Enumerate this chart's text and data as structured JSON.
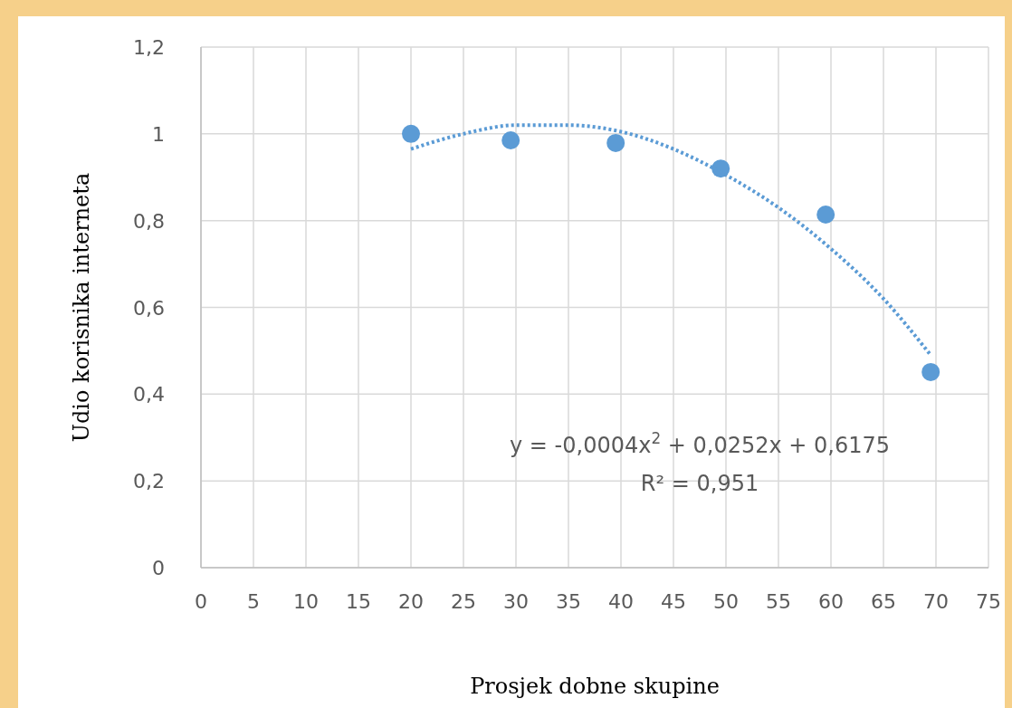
{
  "chart_data": {
    "type": "scatter",
    "xlabel": "Prosjek dobne skupine",
    "ylabel": "Udio korisnika interneta",
    "xlim": [
      0,
      75
    ],
    "xticks": [
      0,
      5,
      10,
      15,
      20,
      25,
      30,
      35,
      40,
      45,
      50,
      55,
      60,
      65,
      70,
      75
    ],
    "ylim": [
      0,
      1.2
    ],
    "yticks": [
      0,
      {
        "value": 0.2,
        "label": "0,2"
      },
      {
        "value": 0.4,
        "label": "0,4"
      },
      {
        "value": 0.6,
        "label": "0,6"
      },
      {
        "value": 0.8,
        "label": "0,8"
      },
      1,
      {
        "value": 1.2,
        "label": "1,2"
      }
    ],
    "grid": true,
    "marker": "circle",
    "series": [
      {
        "color": "#5b9bd5",
        "x": [
          20,
          29.5,
          39.5,
          49.5,
          59.5,
          69.5
        ],
        "values": [
          1.0,
          0.985,
          0.979,
          0.92,
          0.814,
          0.451
        ]
      },
      {
        "type": "line",
        "color": "#5b9bd5",
        "line_style": "dotted",
        "marker": "none",
        "x": [
          20,
          25,
          30,
          35,
          40,
          45,
          50,
          55,
          60,
          65,
          69.5
        ],
        "values": [
          0.965,
          1.0,
          1.02,
          1.02,
          1.005,
          0.965,
          0.905,
          0.83,
          0.735,
          0.62,
          0.49
        ]
      }
    ],
    "annotations": [
      "y = -0,0004x$^{2}$ + 0,0252x + 0,6175",
      "R² = 0,951"
    ]
  }
}
